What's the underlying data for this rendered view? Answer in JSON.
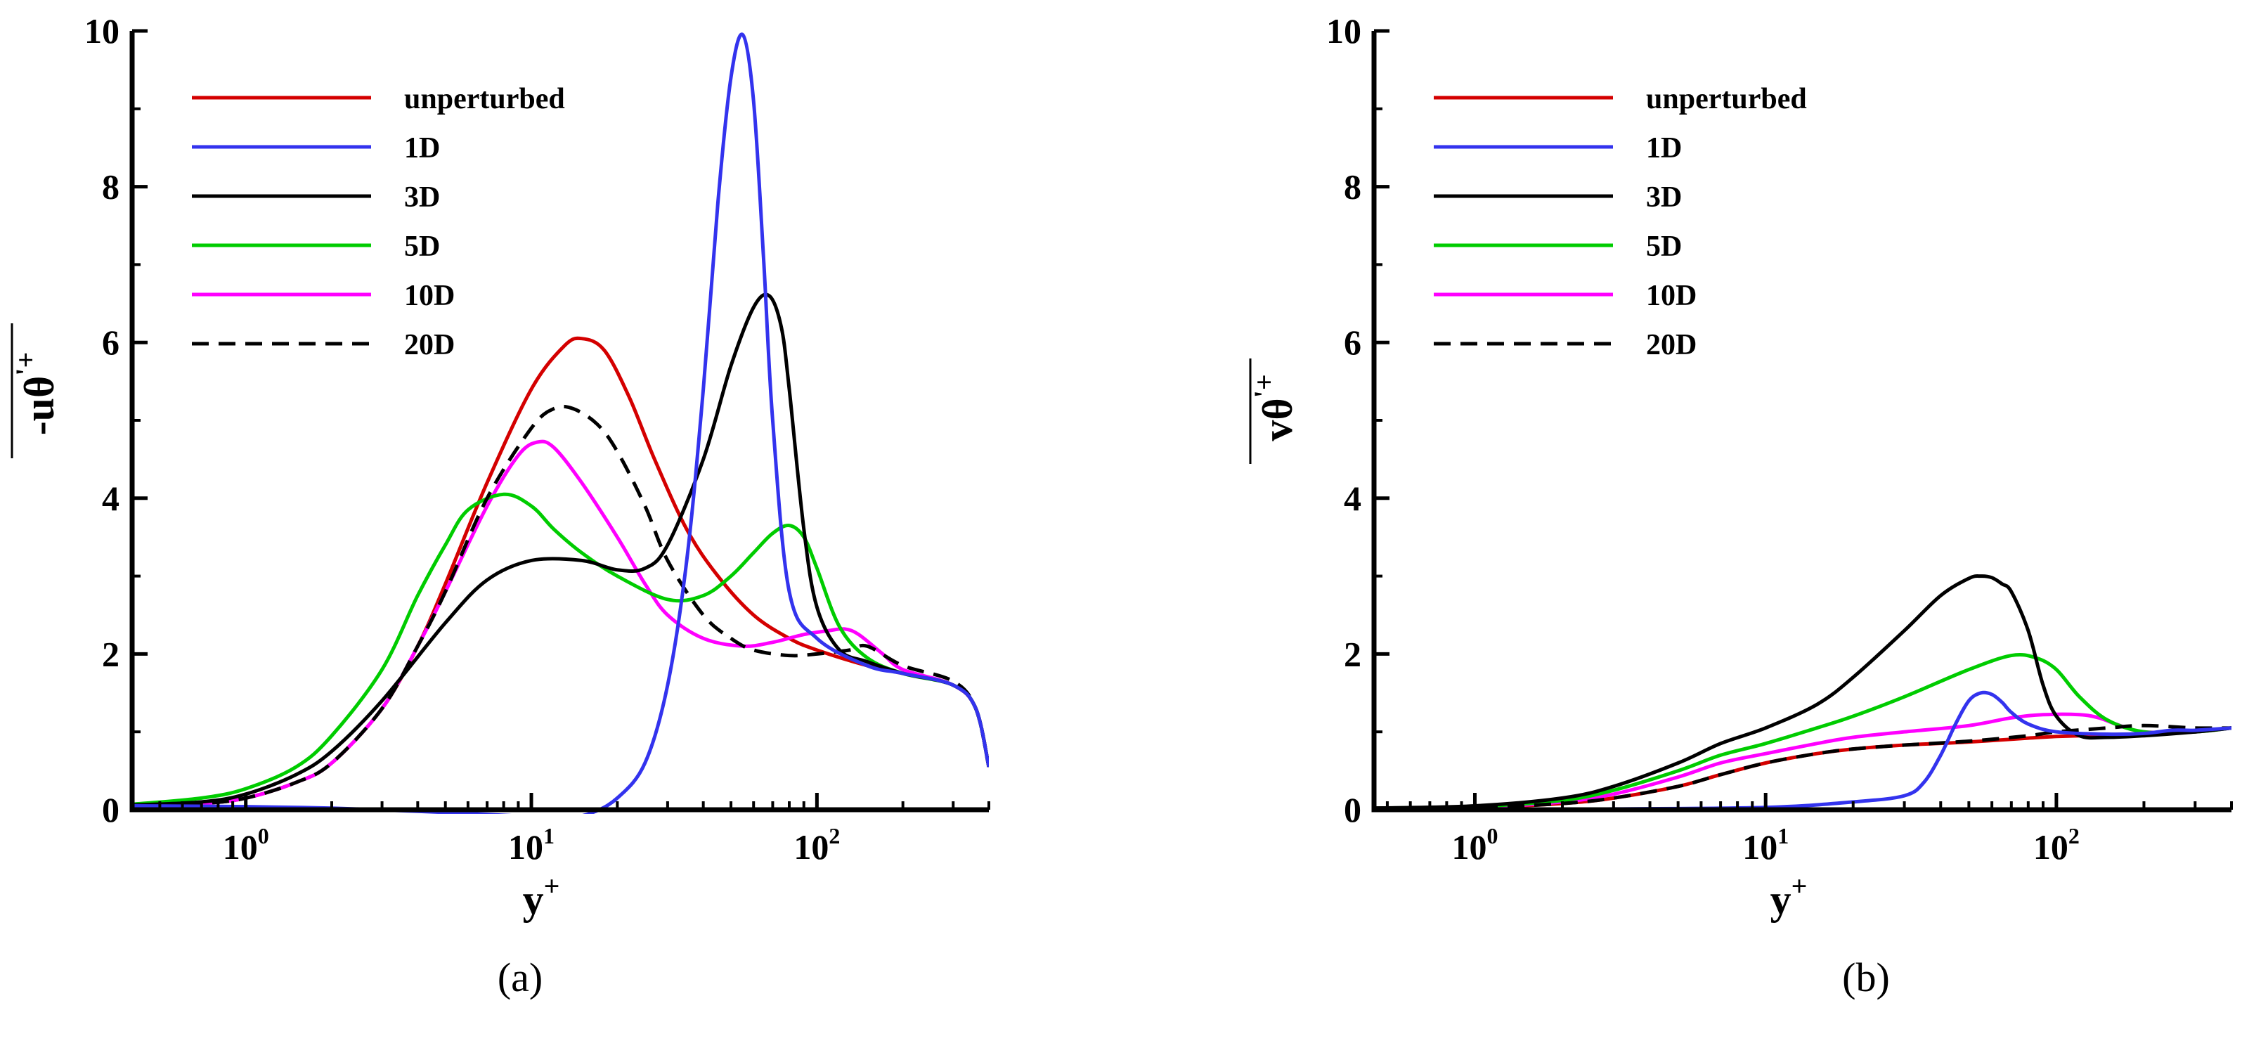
{
  "chart_data": [
    {
      "type": "line",
      "caption": "(a)",
      "ylabel": {
        "base": "-u",
        "theta": "θ",
        "prime": "'",
        "sup": "'+"
      },
      "xlabel": {
        "base": "y",
        "sup": "+"
      },
      "xscale": "log",
      "xlim": [
        0.4,
        400
      ],
      "ylim": [
        0,
        10
      ],
      "grid": false,
      "legend_position": "top-left",
      "xticks": [
        {
          "value": 1,
          "base": "10",
          "exp": "0"
        },
        {
          "value": 10,
          "base": "10",
          "exp": "1"
        },
        {
          "value": 100,
          "base": "10",
          "exp": "2"
        }
      ],
      "yticks": [
        {
          "value": 0,
          "label": "0"
        },
        {
          "value": 2,
          "label": "2"
        },
        {
          "value": 4,
          "label": "4"
        },
        {
          "value": 6,
          "label": "6"
        },
        {
          "value": 8,
          "label": "8"
        },
        {
          "value": 10,
          "label": "10"
        }
      ],
      "series": [
        {
          "name": "unperturbed",
          "color": "#d40000",
          "dashed": false,
          "x": [
            0.4,
            0.7,
            1,
            1.5,
            2,
            3,
            4,
            5,
            7,
            10,
            13,
            15,
            18,
            22,
            27,
            35,
            45,
            60,
            80,
            100,
            150,
            200,
            300,
            360,
            400
          ],
          "y": [
            0.05,
            0.08,
            0.15,
            0.35,
            0.6,
            1.3,
            2.1,
            2.9,
            4.2,
            5.4,
            5.95,
            6.05,
            5.9,
            5.3,
            4.5,
            3.6,
            3.0,
            2.5,
            2.2,
            2.05,
            1.85,
            1.75,
            1.6,
            1.3,
            0.55
          ]
        },
        {
          "name": "1D",
          "color": "#3333ee",
          "dashed": false,
          "x": [
            0.4,
            1,
            2,
            4,
            7,
            10,
            13,
            16,
            20,
            25,
            30,
            35,
            40,
            45,
            50,
            55,
            60,
            65,
            70,
            80,
            100,
            150,
            200,
            300,
            360,
            400
          ],
          "y": [
            0.05,
            0.04,
            0.02,
            -0.02,
            -0.06,
            -0.09,
            -0.1,
            -0.05,
            0.15,
            0.6,
            1.6,
            3.2,
            5.4,
            7.8,
            9.4,
            9.95,
            9.1,
            7.1,
            5.0,
            2.8,
            2.2,
            1.85,
            1.75,
            1.6,
            1.3,
            0.55
          ]
        },
        {
          "name": "3D",
          "color": "#000000",
          "dashed": false,
          "x": [
            0.4,
            0.7,
            1,
            1.5,
            2,
            3,
            5,
            7,
            10,
            15,
            20,
            25,
            30,
            40,
            50,
            60,
            68,
            75,
            80,
            90,
            100,
            120,
            150,
            200,
            300,
            360,
            400
          ],
          "y": [
            0.06,
            0.1,
            0.2,
            0.45,
            0.75,
            1.4,
            2.4,
            2.95,
            3.2,
            3.2,
            3.08,
            3.1,
            3.4,
            4.5,
            5.7,
            6.45,
            6.6,
            6.2,
            5.4,
            3.6,
            2.6,
            2.05,
            1.9,
            1.75,
            1.6,
            1.3,
            0.55
          ]
        },
        {
          "name": "5D",
          "color": "#00cc00",
          "dashed": false,
          "x": [
            0.4,
            0.7,
            1,
            1.5,
            2,
            3,
            4,
            5,
            6,
            8,
            10,
            12,
            15,
            20,
            30,
            40,
            50,
            60,
            70,
            80,
            90,
            100,
            120,
            150,
            200,
            300,
            360,
            400
          ],
          "y": [
            0.07,
            0.15,
            0.27,
            0.55,
            0.95,
            1.8,
            2.75,
            3.4,
            3.85,
            4.05,
            3.9,
            3.6,
            3.3,
            3.0,
            2.7,
            2.75,
            3.0,
            3.3,
            3.55,
            3.65,
            3.5,
            3.1,
            2.35,
            1.95,
            1.75,
            1.6,
            1.3,
            0.55
          ]
        },
        {
          "name": "10D",
          "color": "#ff00ff",
          "dashed": false,
          "x": [
            0.4,
            0.7,
            1,
            1.5,
            2,
            3,
            4,
            5,
            7,
            9,
            10.5,
            12,
            15,
            20,
            25,
            30,
            40,
            55,
            70,
            90,
            110,
            125,
            140,
            170,
            200,
            300,
            360,
            400
          ],
          "y": [
            0.05,
            0.08,
            0.15,
            0.35,
            0.6,
            1.3,
            2.1,
            2.8,
            3.9,
            4.55,
            4.72,
            4.65,
            4.2,
            3.5,
            2.9,
            2.5,
            2.2,
            2.1,
            2.15,
            2.25,
            2.3,
            2.32,
            2.25,
            2.0,
            1.8,
            1.6,
            1.3,
            0.55
          ]
        },
        {
          "name": "20D",
          "color": "#000000",
          "dashed": true,
          "x": [
            0.4,
            0.7,
            1,
            1.5,
            2,
            3,
            4,
            5,
            7,
            10,
            12,
            14,
            17,
            20,
            25,
            30,
            40,
            50,
            60,
            80,
            100,
            130,
            150,
            200,
            300,
            360,
            400
          ],
          "y": [
            0.05,
            0.08,
            0.15,
            0.35,
            0.6,
            1.3,
            2.1,
            2.8,
            4.0,
            4.9,
            5.15,
            5.15,
            4.95,
            4.6,
            3.9,
            3.2,
            2.5,
            2.2,
            2.05,
            1.98,
            2.0,
            2.05,
            2.1,
            1.85,
            1.65,
            1.3,
            0.55
          ]
        }
      ]
    },
    {
      "type": "line",
      "caption": "(b)",
      "ylabel": {
        "base": "v",
        "theta": "θ",
        "prime": "'",
        "sup": "'+"
      },
      "xlabel": {
        "base": "y",
        "sup": "+"
      },
      "xscale": "log",
      "xlim": [
        0.45,
        400
      ],
      "ylim": [
        0,
        10
      ],
      "grid": false,
      "legend_position": "top-left",
      "xticks": [
        {
          "value": 1,
          "base": "10",
          "exp": "0"
        },
        {
          "value": 10,
          "base": "10",
          "exp": "1"
        },
        {
          "value": 100,
          "base": "10",
          "exp": "2"
        }
      ],
      "yticks": [
        {
          "value": 0,
          "label": "0"
        },
        {
          "value": 2,
          "label": "2"
        },
        {
          "value": 4,
          "label": "4"
        },
        {
          "value": 6,
          "label": "6"
        },
        {
          "value": 8,
          "label": "8"
        },
        {
          "value": 10,
          "label": "10"
        }
      ],
      "series": [
        {
          "name": "unperturbed",
          "color": "#d40000",
          "dashed": false,
          "x": [
            0.45,
            1,
            2,
            3,
            5,
            7,
            10,
            15,
            20,
            30,
            50,
            80,
            100,
            150,
            200,
            300,
            400
          ],
          "y": [
            0.02,
            0.03,
            0.08,
            0.15,
            0.3,
            0.45,
            0.6,
            0.72,
            0.78,
            0.83,
            0.87,
            0.92,
            0.94,
            0.96,
            0.97,
            1.0,
            1.05
          ]
        },
        {
          "name": "1D",
          "color": "#3333ee",
          "dashed": false,
          "x": [
            0.45,
            1,
            3,
            10,
            20,
            30,
            35,
            40,
            45,
            50,
            55,
            60,
            65,
            70,
            80,
            100,
            150,
            200,
            250,
            300,
            400
          ],
          "y": [
            0.0,
            0.0,
            0.01,
            0.03,
            0.1,
            0.18,
            0.35,
            0.7,
            1.1,
            1.4,
            1.5,
            1.48,
            1.38,
            1.25,
            1.1,
            1.0,
            0.97,
            0.98,
            1.02,
            1.02,
            1.05
          ]
        },
        {
          "name": "3D",
          "color": "#000000",
          "dashed": false,
          "x": [
            0.45,
            1,
            2,
            3,
            5,
            7,
            10,
            15,
            20,
            30,
            40,
            50,
            55,
            60,
            65,
            70,
            80,
            90,
            100,
            120,
            150,
            200,
            300,
            400
          ],
          "y": [
            0.02,
            0.05,
            0.15,
            0.3,
            0.6,
            0.85,
            1.05,
            1.35,
            1.7,
            2.3,
            2.75,
            2.97,
            3.0,
            2.98,
            2.9,
            2.8,
            2.3,
            1.6,
            1.2,
            0.95,
            0.93,
            0.95,
            1.0,
            1.05
          ]
        },
        {
          "name": "5D",
          "color": "#00cc00",
          "dashed": false,
          "x": [
            0.45,
            1,
            2,
            3,
            5,
            7,
            10,
            15,
            20,
            30,
            50,
            70,
            85,
            100,
            120,
            150,
            200,
            300,
            400
          ],
          "y": [
            0.02,
            0.04,
            0.12,
            0.25,
            0.5,
            0.7,
            0.85,
            1.05,
            1.2,
            1.45,
            1.8,
            1.98,
            1.95,
            1.8,
            1.45,
            1.15,
            1.0,
            1.0,
            1.05
          ]
        },
        {
          "name": "10D",
          "color": "#ff00ff",
          "dashed": false,
          "x": [
            0.45,
            1,
            2,
            3,
            5,
            7,
            10,
            15,
            20,
            30,
            50,
            70,
            90,
            120,
            140,
            160,
            200,
            300,
            400
          ],
          "y": [
            0.02,
            0.03,
            0.1,
            0.2,
            0.42,
            0.6,
            0.72,
            0.85,
            0.93,
            1.0,
            1.08,
            1.18,
            1.22,
            1.22,
            1.18,
            1.1,
            1.0,
            1.0,
            1.05
          ]
        },
        {
          "name": "20D",
          "color": "#000000",
          "dashed": true,
          "x": [
            0.45,
            1,
            2,
            3,
            5,
            7,
            10,
            15,
            20,
            30,
            50,
            80,
            100,
            150,
            200,
            300,
            400
          ],
          "y": [
            0.02,
            0.03,
            0.08,
            0.15,
            0.3,
            0.45,
            0.6,
            0.72,
            0.78,
            0.83,
            0.88,
            0.95,
            1.0,
            1.05,
            1.08,
            1.05,
            1.05
          ]
        }
      ]
    }
  ]
}
